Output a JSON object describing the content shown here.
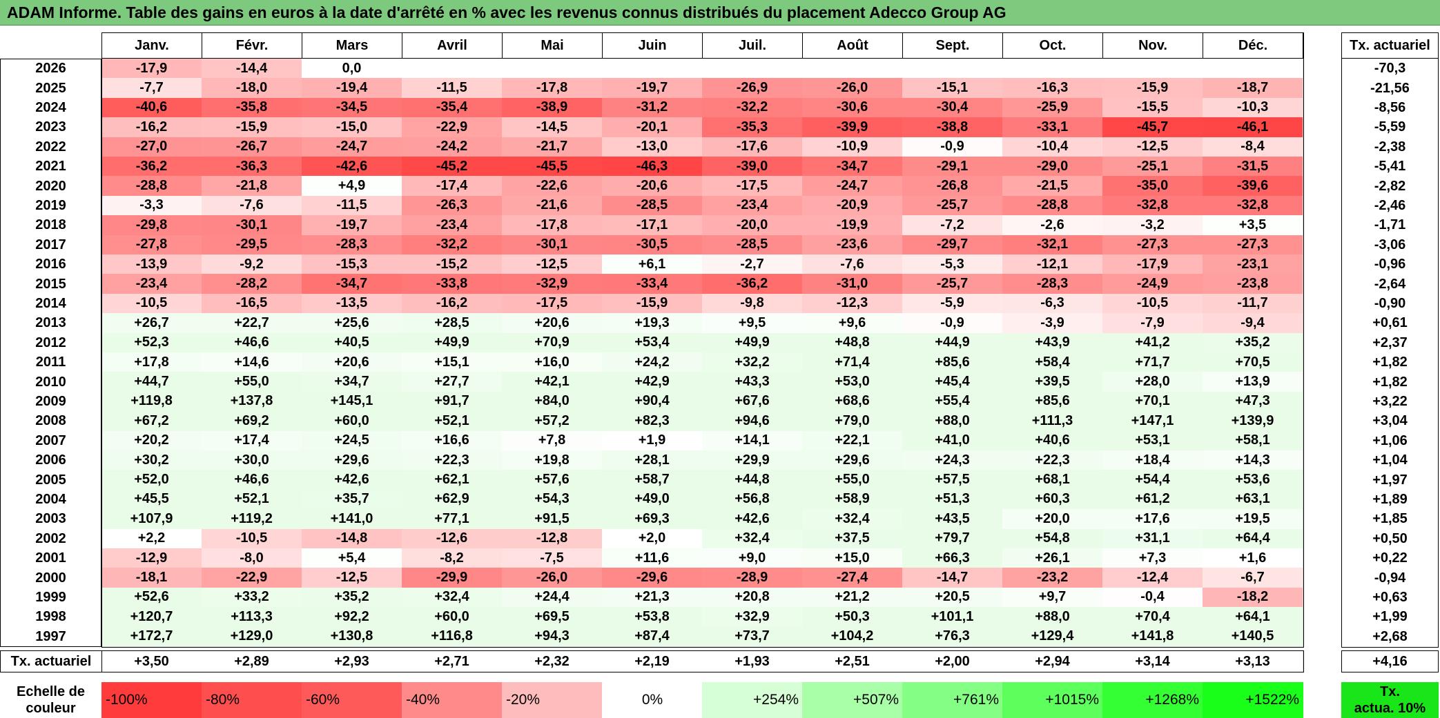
{
  "title": "ADAM Informe. Table des gains en euros à la date d'arrêté en % avec les revenus connus distribués du placement Adecco Group AG",
  "months": [
    "Janv.",
    "Févr.",
    "Mars",
    "Avril",
    "Mai",
    "Juin",
    "Juil.",
    "Août",
    "Sept.",
    "Oct.",
    "Nov.",
    "Déc."
  ],
  "tx_header": "Tx. actuariel",
  "rows": [
    {
      "year": "2026",
      "values": [
        "-17,9",
        "-14,4",
        "0,0",
        "",
        "",
        "",
        "",
        "",
        "",
        "",
        "",
        ""
      ],
      "tx": "-70,3"
    },
    {
      "year": "2025",
      "values": [
        "-7,7",
        "-18,0",
        "-19,4",
        "-11,5",
        "-17,8",
        "-19,7",
        "-26,9",
        "-26,0",
        "-15,1",
        "-16,3",
        "-15,9",
        "-18,7"
      ],
      "tx": "-21,56"
    },
    {
      "year": "2024",
      "values": [
        "-40,6",
        "-35,8",
        "-34,5",
        "-35,4",
        "-38,9",
        "-31,2",
        "-32,2",
        "-30,6",
        "-30,4",
        "-25,9",
        "-15,5",
        "-10,3"
      ],
      "tx": "-8,56"
    },
    {
      "year": "2023",
      "values": [
        "-16,2",
        "-15,9",
        "-15,0",
        "-22,9",
        "-14,5",
        "-20,1",
        "-35,3",
        "-39,9",
        "-38,8",
        "-33,1",
        "-45,7",
        "-46,1"
      ],
      "tx": "-5,59"
    },
    {
      "year": "2022",
      "values": [
        "-27,0",
        "-26,7",
        "-24,7",
        "-24,2",
        "-21,7",
        "-13,0",
        "-17,6",
        "-10,9",
        "-0,9",
        "-10,4",
        "-12,5",
        "-8,4"
      ],
      "tx": "-2,38"
    },
    {
      "year": "2021",
      "values": [
        "-36,2",
        "-36,3",
        "-42,6",
        "-45,2",
        "-45,5",
        "-46,3",
        "-39,0",
        "-34,7",
        "-29,1",
        "-29,0",
        "-25,1",
        "-31,5"
      ],
      "tx": "-5,41"
    },
    {
      "year": "2020",
      "values": [
        "-28,8",
        "-21,8",
        "+4,9",
        "-17,4",
        "-22,6",
        "-20,6",
        "-17,5",
        "-24,7",
        "-26,8",
        "-21,5",
        "-35,0",
        "-39,6"
      ],
      "tx": "-2,82"
    },
    {
      "year": "2019",
      "values": [
        "-3,3",
        "-7,6",
        "-11,5",
        "-26,3",
        "-21,6",
        "-28,5",
        "-23,4",
        "-20,9",
        "-25,7",
        "-28,8",
        "-32,8",
        "-32,8"
      ],
      "tx": "-2,46"
    },
    {
      "year": "2018",
      "values": [
        "-29,8",
        "-30,1",
        "-19,7",
        "-23,4",
        "-17,8",
        "-17,1",
        "-20,0",
        "-19,9",
        "-7,2",
        "-2,6",
        "-3,2",
        "+3,5"
      ],
      "tx": "-1,71"
    },
    {
      "year": "2017",
      "values": [
        "-27,8",
        "-29,5",
        "-28,3",
        "-32,2",
        "-30,1",
        "-30,5",
        "-28,5",
        "-23,6",
        "-29,7",
        "-32,1",
        "-27,3",
        "-27,3"
      ],
      "tx": "-3,06"
    },
    {
      "year": "2016",
      "values": [
        "-13,9",
        "-9,2",
        "-15,3",
        "-15,2",
        "-12,5",
        "+6,1",
        "-2,7",
        "-7,6",
        "-5,3",
        "-12,1",
        "-17,9",
        "-23,1"
      ],
      "tx": "-0,96"
    },
    {
      "year": "2015",
      "values": [
        "-23,4",
        "-28,2",
        "-34,7",
        "-33,8",
        "-32,9",
        "-33,4",
        "-36,2",
        "-31,0",
        "-25,7",
        "-28,3",
        "-24,9",
        "-23,8"
      ],
      "tx": "-2,64"
    },
    {
      "year": "2014",
      "values": [
        "-10,5",
        "-16,5",
        "-13,5",
        "-16,2",
        "-17,5",
        "-15,9",
        "-9,8",
        "-12,3",
        "-5,9",
        "-6,3",
        "-10,5",
        "-11,7"
      ],
      "tx": "-0,90"
    },
    {
      "year": "2013",
      "values": [
        "+26,7",
        "+22,7",
        "+25,6",
        "+28,5",
        "+20,6",
        "+19,3",
        "+9,5",
        "+9,6",
        "-0,9",
        "-3,9",
        "-7,9",
        "-9,4"
      ],
      "tx": "+0,61"
    },
    {
      "year": "2012",
      "values": [
        "+52,3",
        "+46,6",
        "+40,5",
        "+49,9",
        "+70,9",
        "+53,4",
        "+49,9",
        "+48,8",
        "+44,9",
        "+43,9",
        "+41,2",
        "+35,2"
      ],
      "tx": "+2,37"
    },
    {
      "year": "2011",
      "values": [
        "+17,8",
        "+14,6",
        "+20,6",
        "+15,1",
        "+16,0",
        "+24,2",
        "+32,2",
        "+71,4",
        "+85,6",
        "+58,4",
        "+71,7",
        "+70,5"
      ],
      "tx": "+1,82"
    },
    {
      "year": "2010",
      "values": [
        "+44,7",
        "+55,0",
        "+34,7",
        "+27,7",
        "+42,1",
        "+42,9",
        "+43,3",
        "+53,0",
        "+45,4",
        "+39,5",
        "+28,0",
        "+13,9"
      ],
      "tx": "+1,82"
    },
    {
      "year": "2009",
      "values": [
        "+119,8",
        "+137,8",
        "+145,1",
        "+91,7",
        "+84,0",
        "+90,4",
        "+67,6",
        "+68,6",
        "+55,4",
        "+85,6",
        "+70,1",
        "+47,3"
      ],
      "tx": "+3,22"
    },
    {
      "year": "2008",
      "values": [
        "+67,2",
        "+69,2",
        "+60,0",
        "+52,1",
        "+57,2",
        "+82,3",
        "+94,6",
        "+79,0",
        "+88,0",
        "+111,3",
        "+147,1",
        "+139,9"
      ],
      "tx": "+3,04"
    },
    {
      "year": "2007",
      "values": [
        "+20,2",
        "+17,4",
        "+24,5",
        "+16,6",
        "+7,8",
        "+1,9",
        "+14,1",
        "+22,1",
        "+41,0",
        "+40,6",
        "+53,1",
        "+58,1"
      ],
      "tx": "+1,06"
    },
    {
      "year": "2006",
      "values": [
        "+30,2",
        "+30,0",
        "+29,6",
        "+22,3",
        "+19,8",
        "+28,1",
        "+29,9",
        "+29,6",
        "+24,3",
        "+22,3",
        "+18,4",
        "+14,3"
      ],
      "tx": "+1,04"
    },
    {
      "year": "2005",
      "values": [
        "+52,0",
        "+46,6",
        "+42,6",
        "+62,1",
        "+57,6",
        "+58,7",
        "+44,8",
        "+55,0",
        "+57,5",
        "+68,1",
        "+54,4",
        "+53,6"
      ],
      "tx": "+1,97"
    },
    {
      "year": "2004",
      "values": [
        "+45,5",
        "+52,1",
        "+35,7",
        "+62,9",
        "+54,3",
        "+49,0",
        "+56,8",
        "+58,9",
        "+51,3",
        "+60,3",
        "+61,2",
        "+63,1"
      ],
      "tx": "+1,89"
    },
    {
      "year": "2003",
      "values": [
        "+107,9",
        "+119,2",
        "+141,0",
        "+77,1",
        "+91,5",
        "+69,3",
        "+42,6",
        "+32,4",
        "+43,5",
        "+20,0",
        "+17,6",
        "+19,5"
      ],
      "tx": "+1,85"
    },
    {
      "year": "2002",
      "values": [
        "+2,2",
        "-10,5",
        "-14,8",
        "-12,6",
        "-12,8",
        "+2,0",
        "+32,4",
        "+37,5",
        "+79,7",
        "+54,8",
        "+31,1",
        "+64,4"
      ],
      "tx": "+0,50"
    },
    {
      "year": "2001",
      "values": [
        "-12,9",
        "-8,0",
        "+5,4",
        "-8,2",
        "-7,5",
        "+11,6",
        "+9,0",
        "+15,0",
        "+66,3",
        "+26,1",
        "+7,3",
        "+1,6"
      ],
      "tx": "+0,22"
    },
    {
      "year": "2000",
      "values": [
        "-18,1",
        "-22,9",
        "-12,5",
        "-29,9",
        "-26,0",
        "-29,6",
        "-28,9",
        "-27,4",
        "-14,7",
        "-23,2",
        "-12,4",
        "-6,7"
      ],
      "tx": "-0,94"
    },
    {
      "year": "1999",
      "values": [
        "+52,6",
        "+33,2",
        "+35,2",
        "+32,4",
        "+24,4",
        "+21,3",
        "+20,8",
        "+21,2",
        "+20,5",
        "+9,7",
        "-0,4",
        "-18,2"
      ],
      "tx": "+0,63"
    },
    {
      "year": "1998",
      "values": [
        "+120,7",
        "+113,3",
        "+92,2",
        "+60,0",
        "+69,5",
        "+53,8",
        "+32,9",
        "+50,3",
        "+101,1",
        "+88,0",
        "+70,4",
        "+64,1"
      ],
      "tx": "+1,99"
    },
    {
      "year": "1997",
      "values": [
        "+172,7",
        "+129,0",
        "+130,8",
        "+116,8",
        "+94,3",
        "+87,4",
        "+73,7",
        "+104,2",
        "+76,3",
        "+129,4",
        "+141,8",
        "+140,5"
      ],
      "tx": "+2,68"
    }
  ],
  "footer": {
    "label": "Tx. actuariel",
    "values": [
      "+3,50",
      "+2,89",
      "+2,93",
      "+2,71",
      "+2,32",
      "+2,19",
      "+1,93",
      "+2,51",
      "+2,00",
      "+2,94",
      "+3,14",
      "+3,13"
    ],
    "tx": "+4,16"
  },
  "scale": {
    "label_line1": "Echelle de",
    "label_line2": "couleur",
    "items": [
      {
        "text": "-100%",
        "color": "#ff3b3b"
      },
      {
        "text": "-80%",
        "color": "#ff4e4e"
      },
      {
        "text": "-60%",
        "color": "#ff5a5a"
      },
      {
        "text": "-40%",
        "color": "#ff8a8a"
      },
      {
        "text": "-20%",
        "color": "#ffbcbc"
      },
      {
        "text": "0%",
        "color": "#ffffff"
      },
      {
        "text": "+254%",
        "color": "#d6ffd6"
      },
      {
        "text": "+507%",
        "color": "#a8ffa8"
      },
      {
        "text": "+761%",
        "color": "#84ff84"
      },
      {
        "text": "+1015%",
        "color": "#5cff5c"
      },
      {
        "text": "+1268%",
        "color": "#33ff33"
      },
      {
        "text": "+1522%",
        "color": "#19ff19"
      }
    ],
    "tx_line1": "Tx.",
    "tx_line2": "actua. 10%",
    "tx_color": "#19e619"
  },
  "colors": {
    "title_bg": "#7dc97d",
    "negative_max": "#ff4242",
    "positive_max": "#e6fbe6"
  }
}
